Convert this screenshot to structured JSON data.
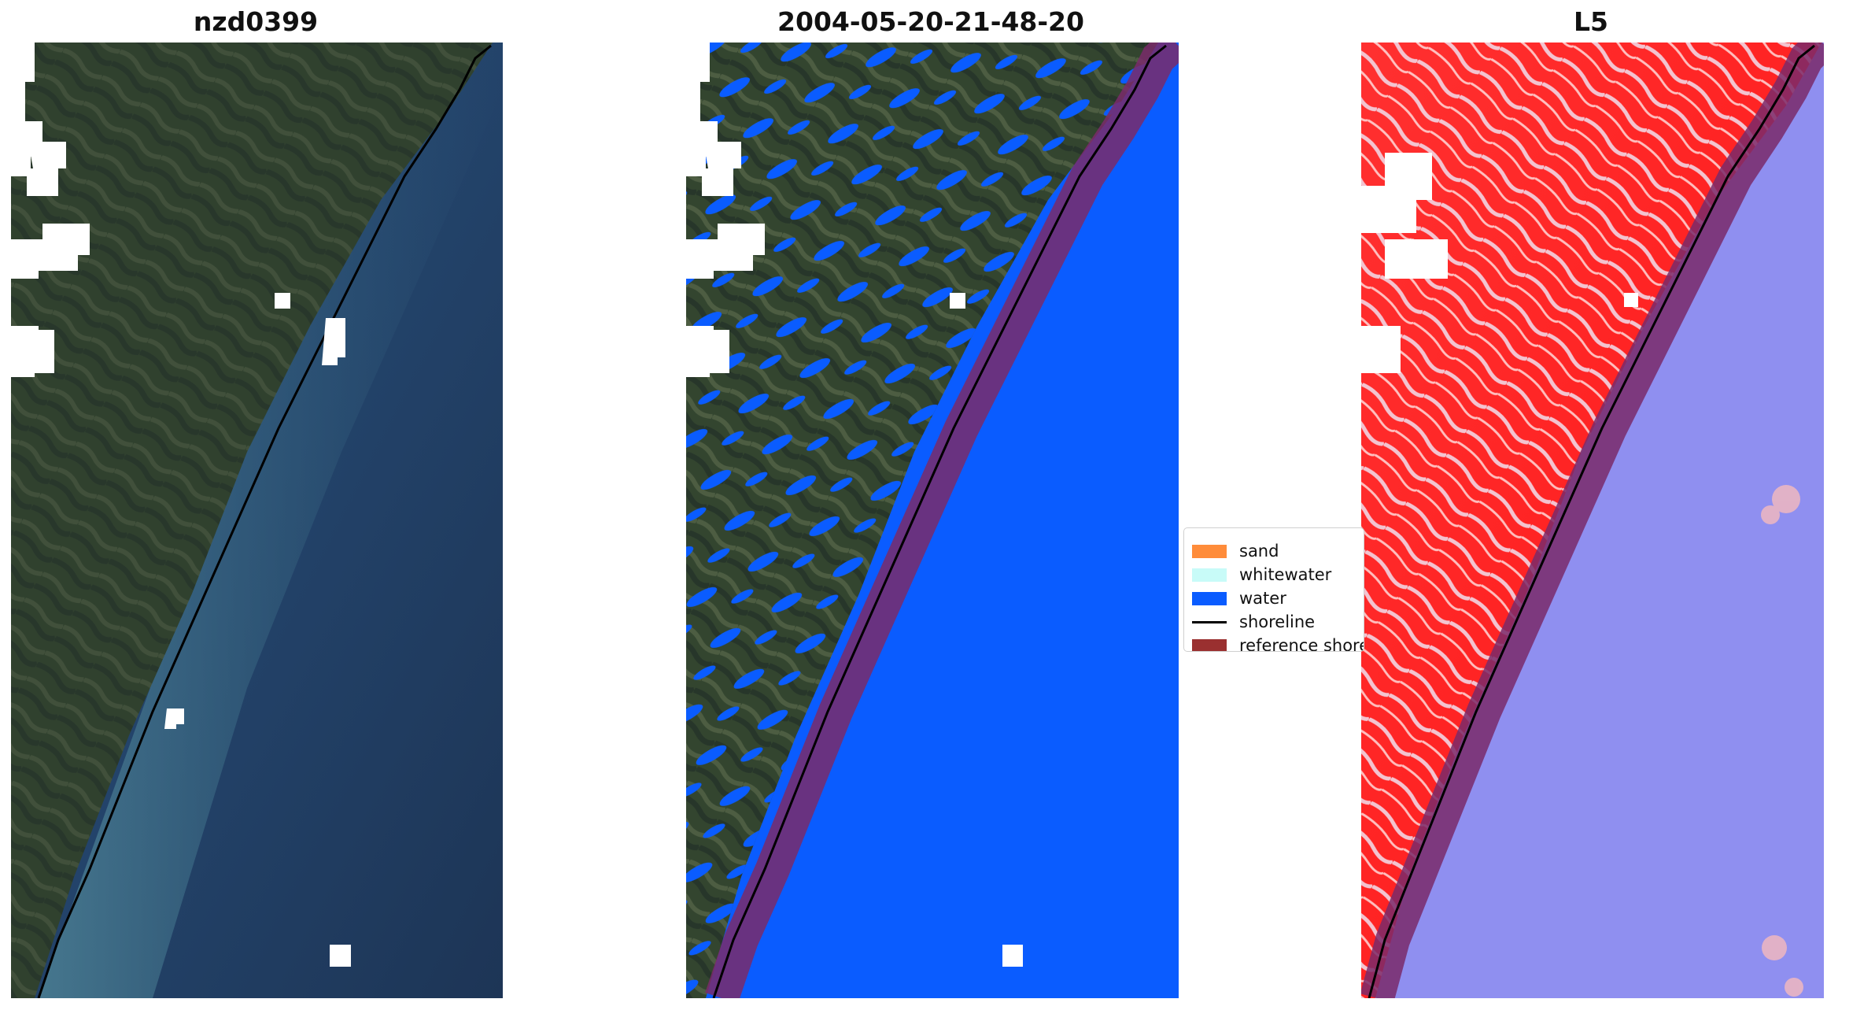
{
  "titles": {
    "left": "nzd0399",
    "middle": "2004-05-20-21-48-20",
    "right": "L5"
  },
  "legend": {
    "items": [
      {
        "label": "sand",
        "color": "#ff8c3a",
        "type": "patch"
      },
      {
        "label": "whitewater",
        "color": "#c8fbf8",
        "type": "patch"
      },
      {
        "label": "water",
        "color": "#0a5cff",
        "type": "patch"
      },
      {
        "label": "shoreline",
        "color": "#000000",
        "type": "line"
      },
      {
        "label": "reference shoreline",
        "color": "#9a3030",
        "type": "patch"
      }
    ]
  },
  "colors": {
    "land_rgb": "#3a4a3a",
    "sea_rgb": "#1e3a5c",
    "water_class": "#0a5cff",
    "buffer": "#7a2a6a",
    "index_land": "#ff2020",
    "index_water": "#8888ee"
  }
}
